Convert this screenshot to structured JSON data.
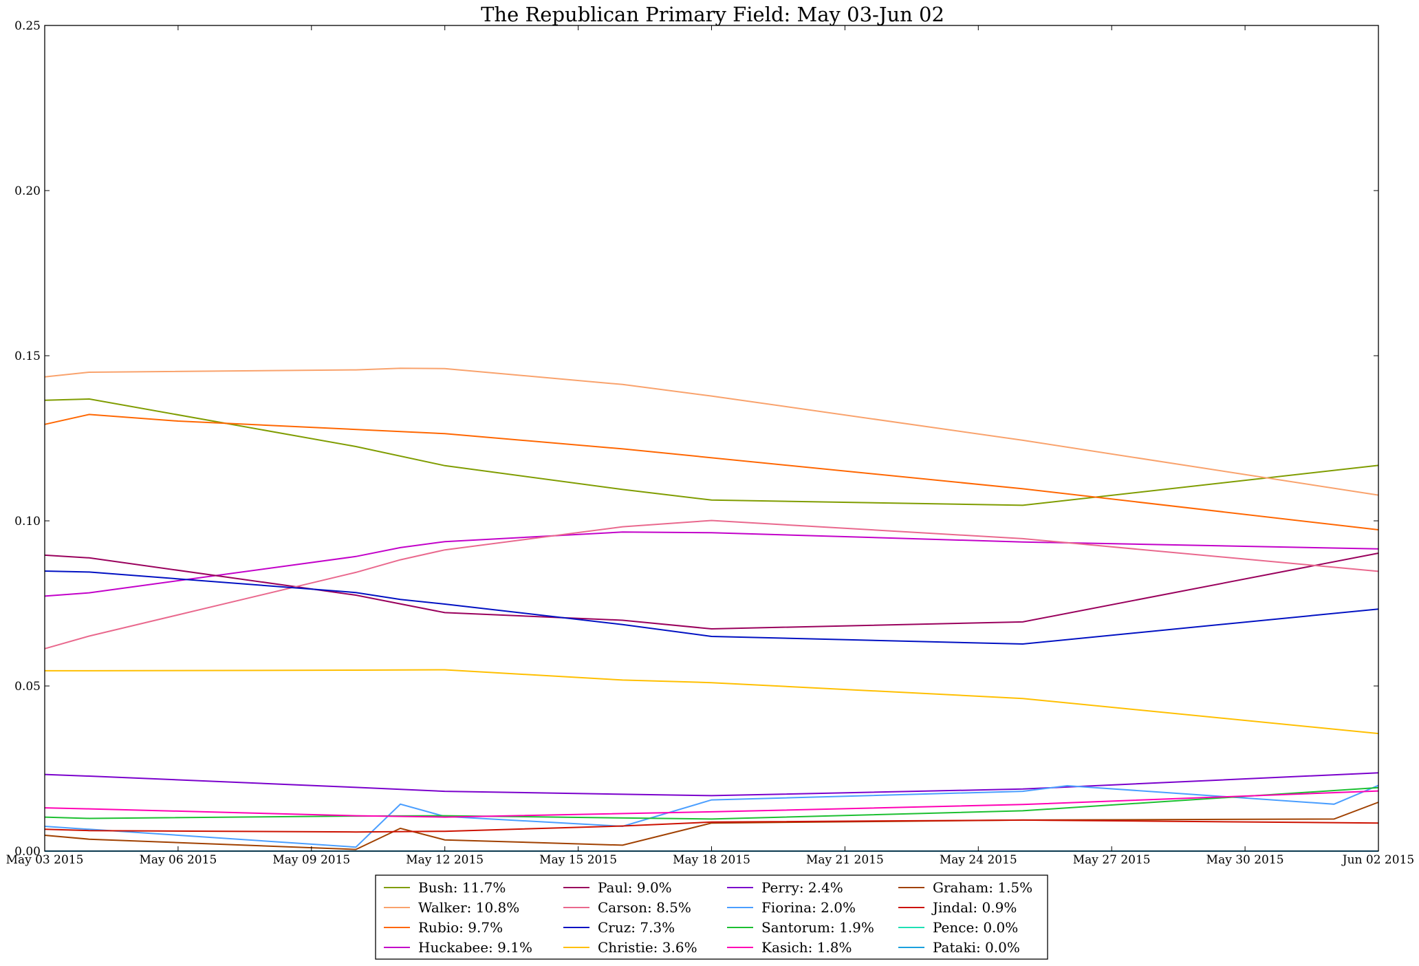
{
  "chart_data": {
    "type": "line",
    "title": "The Republican Primary Field: May 03-Jun 02",
    "xlabel": "",
    "ylabel": "",
    "x_axis": {
      "type": "date",
      "min": "2015-05-03",
      "max": "2015-06-02"
    },
    "ylim": [
      0,
      0.25
    ],
    "x_tick_labels": [
      "May 03 2015",
      "May 06 2015",
      "May 09 2015",
      "May 12 2015",
      "May 15 2015",
      "May 18 2015",
      "May 21 2015",
      "May 24 2015",
      "May 27 2015",
      "May 30 2015",
      "Jun 02 2015"
    ],
    "y_tick_labels": [
      "0.00",
      "0.05",
      "0.10",
      "0.15",
      "0.20",
      "0.25"
    ],
    "y_ticks": [
      0,
      0.05,
      0.1,
      0.15,
      0.2,
      0.25
    ],
    "grid": false,
    "legend": {
      "placement": "bottom-center",
      "columns": 4
    },
    "series": [
      {
        "name": "Bush: 11.7%",
        "color": "#7f9c00",
        "x": [
          "2015-05-03",
          "2015-05-04",
          "2015-05-10",
          "2015-05-12",
          "2015-05-16",
          "2015-05-18",
          "2015-05-25",
          "2015-06-02"
        ],
        "y": [
          0.1365,
          0.1369,
          0.1225,
          0.1167,
          0.1095,
          0.1063,
          0.1047,
          0.1168
        ]
      },
      {
        "name": "Walker: 10.8%",
        "color": "#f9a26c",
        "x": [
          "2015-05-03",
          "2015-05-04",
          "2015-05-10",
          "2015-05-11",
          "2015-05-12",
          "2015-05-16",
          "2015-05-18",
          "2015-05-25",
          "2015-06-02"
        ],
        "y": [
          0.1436,
          0.145,
          0.1457,
          0.1462,
          0.1461,
          0.1413,
          0.1378,
          0.1244,
          0.1078
        ]
      },
      {
        "name": "Rubio: 9.7%",
        "color": "#ff6600",
        "x": [
          "2015-05-03",
          "2015-05-04",
          "2015-05-06",
          "2015-05-12",
          "2015-05-16",
          "2015-05-25",
          "2015-06-02"
        ],
        "y": [
          0.1292,
          0.1322,
          0.1302,
          0.1264,
          0.1218,
          0.1097,
          0.0973
        ]
      },
      {
        "name": "Huckabee: 9.1%",
        "color": "#c200c9",
        "x": [
          "2015-05-03",
          "2015-05-04",
          "2015-05-10",
          "2015-05-11",
          "2015-05-12",
          "2015-05-16",
          "2015-05-18",
          "2015-05-25",
          "2015-06-02"
        ],
        "y": [
          0.0772,
          0.0782,
          0.0892,
          0.0919,
          0.0937,
          0.0966,
          0.0964,
          0.0936,
          0.0915
        ]
      },
      {
        "name": "Paul: 9.0%",
        "color": "#99005c",
        "x": [
          "2015-05-03",
          "2015-05-04",
          "2015-05-10",
          "2015-05-12",
          "2015-05-16",
          "2015-05-18",
          "2015-05-25",
          "2015-06-02"
        ],
        "y": [
          0.0896,
          0.0888,
          0.0775,
          0.0722,
          0.0699,
          0.0673,
          0.0694,
          0.0902
        ]
      },
      {
        "name": "Carson: 8.5%",
        "color": "#e9688d",
        "x": [
          "2015-05-03",
          "2015-05-04",
          "2015-05-10",
          "2015-05-11",
          "2015-05-12",
          "2015-05-16",
          "2015-05-18",
          "2015-05-25",
          "2015-06-02"
        ],
        "y": [
          0.0613,
          0.0651,
          0.0844,
          0.0882,
          0.0912,
          0.0982,
          0.1001,
          0.0946,
          0.0847
        ]
      },
      {
        "name": "Cruz: 7.3%",
        "color": "#0010c2",
        "x": [
          "2015-05-03",
          "2015-05-04",
          "2015-05-10",
          "2015-05-11",
          "2015-05-12",
          "2015-05-16",
          "2015-05-18",
          "2015-05-25",
          "2015-06-02"
        ],
        "y": [
          0.0848,
          0.0845,
          0.0783,
          0.0762,
          0.0748,
          0.0686,
          0.065,
          0.0627,
          0.0733
        ]
      },
      {
        "name": "Christie: 3.6%",
        "color": "#ffbf00",
        "x": [
          "2015-05-03",
          "2015-05-04",
          "2015-05-10",
          "2015-05-12",
          "2015-05-16",
          "2015-05-18",
          "2015-05-25",
          "2015-06-02"
        ],
        "y": [
          0.0546,
          0.0546,
          0.0548,
          0.0549,
          0.0518,
          0.051,
          0.0462,
          0.0356
        ]
      },
      {
        "name": "Perry: 2.4%",
        "color": "#7a00cc",
        "x": [
          "2015-05-03",
          "2015-05-04",
          "2015-05-10",
          "2015-05-12",
          "2015-05-16",
          "2015-05-18",
          "2015-05-25",
          "2015-06-02"
        ],
        "y": [
          0.0232,
          0.0227,
          0.0193,
          0.0181,
          0.0172,
          0.0168,
          0.0188,
          0.0237
        ]
      },
      {
        "name": "Fiorina: 2.0%",
        "color": "#4a9eff",
        "x": [
          "2015-05-03",
          "2015-05-04",
          "2015-05-10",
          "2015-05-11",
          "2015-05-12",
          "2015-05-16",
          "2015-05-18",
          "2015-05-25",
          "2015-05-26",
          "2015-06-01",
          "2015-06-02"
        ],
        "y": [
          0.0075,
          0.0066,
          0.0012,
          0.0142,
          0.0105,
          0.0075,
          0.0155,
          0.0181,
          0.0198,
          0.0142,
          0.0199
        ]
      },
      {
        "name": "Santorum: 1.9%",
        "color": "#1bbf30",
        "x": [
          "2015-05-03",
          "2015-05-04",
          "2015-05-10",
          "2015-05-12",
          "2015-05-18",
          "2015-05-25",
          "2015-06-02"
        ],
        "y": [
          0.0103,
          0.0099,
          0.0106,
          0.0107,
          0.0097,
          0.0122,
          0.0192
        ]
      },
      {
        "name": "Kasich: 1.8%",
        "color": "#ff00b4",
        "x": [
          "2015-05-03",
          "2015-05-04",
          "2015-05-10",
          "2015-05-12",
          "2015-05-18",
          "2015-05-25",
          "2015-06-02"
        ],
        "y": [
          0.0131,
          0.0128,
          0.0107,
          0.0103,
          0.0119,
          0.0141,
          0.0182
        ]
      },
      {
        "name": "Graham: 1.5%",
        "color": "#a04000",
        "x": [
          "2015-05-03",
          "2015-05-04",
          "2015-05-10",
          "2015-05-11",
          "2015-05-12",
          "2015-05-16",
          "2015-05-18",
          "2015-05-25",
          "2015-06-01",
          "2015-06-02"
        ],
        "y": [
          0.0048,
          0.0036,
          0.0005,
          0.0069,
          0.0034,
          0.0018,
          0.0085,
          0.0094,
          0.0097,
          0.0148
        ]
      },
      {
        "name": "Jindal: 0.9%",
        "color": "#cc1100",
        "x": [
          "2015-05-03",
          "2015-05-04",
          "2015-05-10",
          "2015-05-12",
          "2015-05-16",
          "2015-05-18",
          "2015-05-25",
          "2015-06-02"
        ],
        "y": [
          0.0066,
          0.0062,
          0.0058,
          0.006,
          0.0076,
          0.0088,
          0.0094,
          0.0085
        ]
      },
      {
        "name": "Pence: 0.0%",
        "color": "#1ee0b4",
        "x": [
          "2015-05-03",
          "2015-06-02"
        ],
        "y": [
          0.0,
          0.0
        ]
      },
      {
        "name": "Pataki: 0.0%",
        "color": "#1aa0dd",
        "x": [
          "2015-05-03",
          "2015-06-02"
        ],
        "y": [
          0.0,
          0.0
        ]
      }
    ]
  }
}
